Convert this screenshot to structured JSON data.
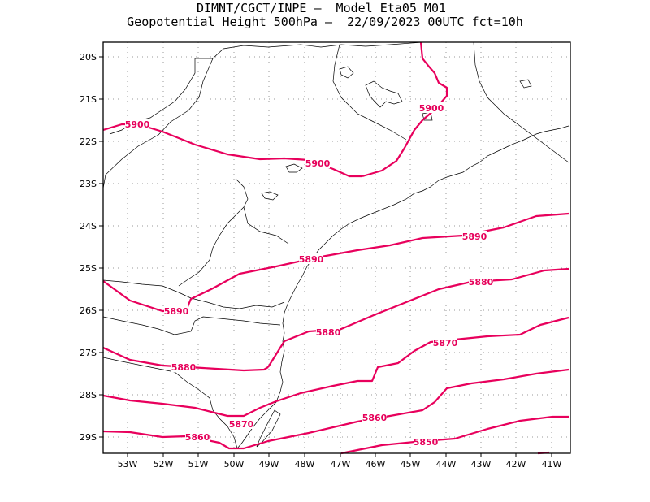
{
  "title": {
    "line1": "DIMNT/CGCT/INPE –  Model Eta05_M01_",
    "line2": "Geopotential Height 500hPa –  22/09/2023 00UTC fct=10h"
  },
  "colors": {
    "contour": "#e8005c",
    "coast": "#000000",
    "grid": "#9a9a9a"
  },
  "lon_ticks": [
    "53W",
    "52W",
    "51W",
    "50W",
    "49W",
    "48W",
    "47W",
    "46W",
    "45W",
    "44W",
    "43W",
    "42W",
    "41W"
  ],
  "lat_ticks": [
    "20S",
    "21S",
    "22S",
    "23S",
    "24S",
    "25S",
    "26S",
    "27S",
    "28S",
    "29S"
  ],
  "contour_labels": [
    {
      "text": "5900"
    },
    {
      "text": "5900"
    },
    {
      "text": "5900"
    },
    {
      "text": "5890"
    },
    {
      "text": "5890"
    },
    {
      "text": "5890"
    },
    {
      "text": "5880"
    },
    {
      "text": "5880"
    },
    {
      "text": "5880"
    },
    {
      "text": "5870"
    },
    {
      "text": "5870"
    },
    {
      "text": "5860"
    },
    {
      "text": "5860"
    },
    {
      "text": "5850"
    }
  ]
}
